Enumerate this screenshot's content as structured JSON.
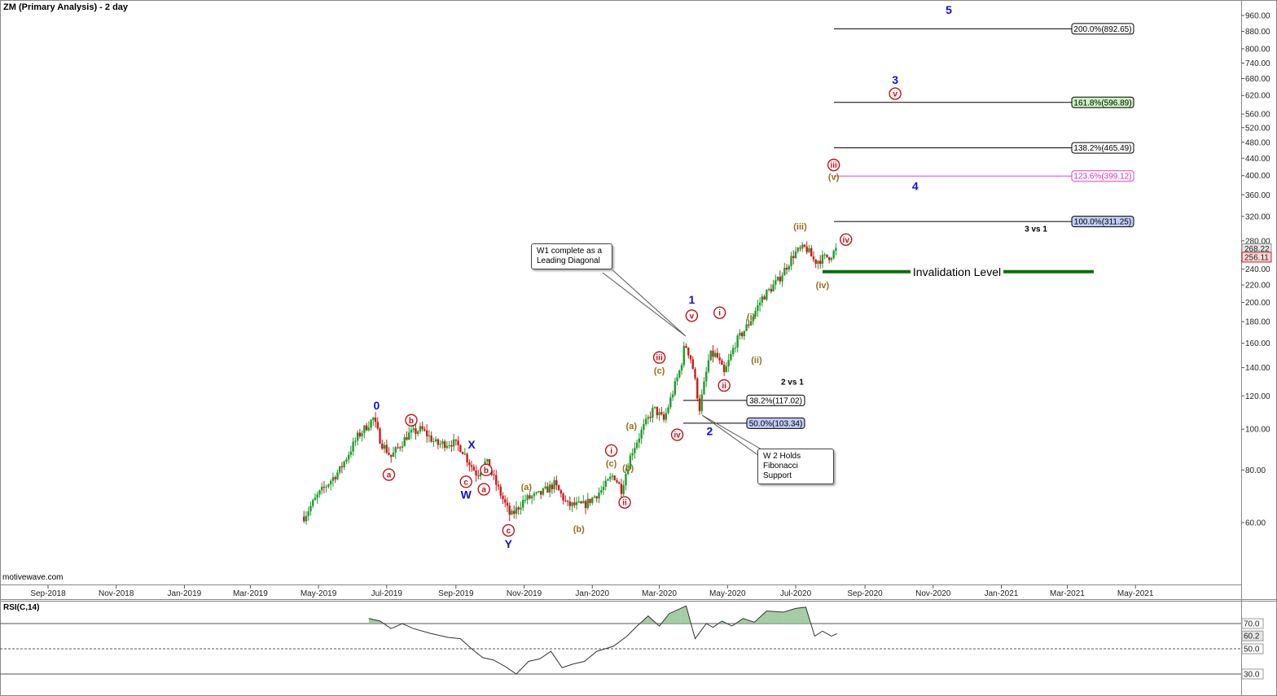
{
  "header": {
    "title": "ZM (Primary Analysis) - 2 day",
    "rsi_title": "RSI(C,14)",
    "watermark": "motivewave.com"
  },
  "colors": {
    "up_candle": "#1d9e2a",
    "down_candle": "#c91b1b",
    "wave_blue": "#1111cc",
    "wave_red": "#c0101a",
    "wave_brown": "#9a6d1c",
    "invalidation": "#0a6e0a",
    "fib_pink": "#e040c0",
    "rsi_fill": "#8fbf8f"
  },
  "chart_data": {
    "type": "candlestick",
    "scale": "log",
    "y_ticks": [
      "960.00",
      "880.00",
      "800.00",
      "740.00",
      "680.00",
      "620.00",
      "560.00",
      "520.00",
      "480.00",
      "440.00",
      "400.00",
      "360.00",
      "320.00",
      "280.00",
      "240.00",
      "220.00",
      "200.00",
      "180.00",
      "160.00",
      "140.00",
      "120.00",
      "100.00",
      "80.00",
      "60.00"
    ],
    "x_ticks": [
      "Sep-2018",
      "Nov-2018",
      "Jan-2019",
      "Mar-2019",
      "May-2019",
      "Jul-2019",
      "Sep-2019",
      "Nov-2019",
      "Jan-2020",
      "Mar-2020",
      "May-2020",
      "Jul-2020",
      "Sep-2020",
      "Nov-2020",
      "Jan-2021",
      "Mar-2021",
      "May-2021"
    ],
    "price_labels": [
      {
        "text": "268.22",
        "price": 268.22,
        "style": "grey"
      },
      {
        "text": "256.11",
        "price": 256.11,
        "style": "red"
      }
    ],
    "price_path": [
      [
        "2019-04-18",
        62
      ],
      [
        "2019-05-01",
        70
      ],
      [
        "2019-05-20",
        80
      ],
      [
        "2019-06-05",
        96
      ],
      [
        "2019-06-19",
        106
      ],
      [
        "2019-06-26",
        93
      ],
      [
        "2019-07-05",
        86
      ],
      [
        "2019-07-20",
        97
      ],
      [
        "2019-08-01",
        100
      ],
      [
        "2019-08-15",
        92
      ],
      [
        "2019-08-29",
        93
      ],
      [
        "2019-09-06",
        90
      ],
      [
        "2019-09-12",
        84
      ],
      [
        "2019-09-20",
        78
      ],
      [
        "2019-09-28",
        84
      ],
      [
        "2019-10-08",
        73
      ],
      [
        "2019-10-20",
        62
      ],
      [
        "2019-11-01",
        68
      ],
      [
        "2019-11-15",
        70
      ],
      [
        "2019-11-28",
        74
      ],
      [
        "2019-12-10",
        66
      ],
      [
        "2019-12-25",
        66
      ],
      [
        "2020-01-10",
        72
      ],
      [
        "2020-01-20",
        78
      ],
      [
        "2020-01-27",
        72
      ],
      [
        "2020-02-05",
        88
      ],
      [
        "2020-02-15",
        100
      ],
      [
        "2020-02-25",
        112
      ],
      [
        "2020-03-05",
        105
      ],
      [
        "2020-03-12",
        120
      ],
      [
        "2020-03-20",
        140
      ],
      [
        "2020-03-24",
        160
      ],
      [
        "2020-03-30",
        145
      ],
      [
        "2020-04-06",
        112
      ],
      [
        "2020-04-15",
        150
      ],
      [
        "2020-04-21",
        150
      ],
      [
        "2020-04-28",
        135
      ],
      [
        "2020-05-08",
        160
      ],
      [
        "2020-05-20",
        178
      ],
      [
        "2020-06-01",
        205
      ],
      [
        "2020-06-15",
        225
      ],
      [
        "2020-06-30",
        262
      ],
      [
        "2020-07-10",
        270
      ],
      [
        "2020-07-18",
        250
      ],
      [
        "2020-07-26",
        255
      ],
      [
        "2020-08-01",
        258
      ],
      [
        "2020-08-07",
        268
      ]
    ],
    "fib_targets": [
      {
        "text": "200.0%(892.65)",
        "price": 892.65,
        "fill": "#ffffff",
        "line": "#000000",
        "text_color": "#000000"
      },
      {
        "text": "161.8%(596.89)",
        "price": 596.89,
        "fill": "#c8f0c0",
        "line": "#000000",
        "text_color": "#000000"
      },
      {
        "text": "138.2%(465.49)",
        "price": 465.49,
        "fill": "#ffffff",
        "line": "#000000",
        "text_color": "#000000"
      },
      {
        "text": "123.6%(399.12)",
        "price": 399.12,
        "fill": "#ffffff",
        "line": "#e040c0",
        "text_color": "#d030b0"
      },
      {
        "text": "100.0%(311.25)",
        "price": 311.25,
        "fill": "#c0ccf4",
        "line": "#000000",
        "text_color": "#000000"
      }
    ],
    "fib_retrace": [
      {
        "text": "38.2%(117.02)",
        "price": 117.02,
        "fill": "#ffffff"
      },
      {
        "text": "50.0%(103.34)",
        "price": 103.34,
        "fill": "#c0ccf4"
      }
    ],
    "ratio_labels": [
      {
        "text": "3 vs 1",
        "date": "2021-02-01",
        "price": 300
      },
      {
        "text": "2 vs 1",
        "date": "2020-06-28",
        "price": 130
      }
    ],
    "invalidation": {
      "label": "Invalidation Level",
      "price": 236.5
    },
    "wave_labels": [
      {
        "text": "0",
        "date": "2019-06-22",
        "price": 114,
        "color": "blue",
        "circle": false
      },
      {
        "text": "a",
        "date": "2019-07-03",
        "price": 78,
        "color": "red",
        "circle": true
      },
      {
        "text": "b",
        "date": "2019-07-23",
        "price": 105,
        "color": "red",
        "circle": true
      },
      {
        "text": "X",
        "date": "2019-09-15",
        "price": 92,
        "color": "blue",
        "circle": false
      },
      {
        "text": "b",
        "date": "2019-09-28",
        "price": 80,
        "color": "red",
        "circle": true
      },
      {
        "text": "c",
        "date": "2019-09-10",
        "price": 75,
        "color": "red",
        "circle": true
      },
      {
        "text": "W",
        "date": "2019-09-10",
        "price": 70,
        "color": "blue",
        "circle": false
      },
      {
        "text": "a",
        "date": "2019-09-26",
        "price": 72,
        "color": "red",
        "circle": true
      },
      {
        "text": "c",
        "date": "2019-10-18",
        "price": 57.5,
        "color": "red",
        "circle": true
      },
      {
        "text": "Y",
        "date": "2019-10-18",
        "price": 53.5,
        "color": "blue",
        "circle": false
      },
      {
        "text": "(a)",
        "date": "2019-11-03",
        "price": 73,
        "color": "brown",
        "circle": false
      },
      {
        "text": "(b)",
        "date": "2019-12-20",
        "price": 58,
        "color": "brown",
        "circle": false
      },
      {
        "text": "i",
        "date": "2020-01-18",
        "price": 89,
        "color": "red",
        "circle": true
      },
      {
        "text": "(c)",
        "date": "2020-01-18",
        "price": 83,
        "color": "brown",
        "circle": false
      },
      {
        "text": "(b)",
        "date": "2020-02-02",
        "price": 81,
        "color": "brown",
        "circle": false
      },
      {
        "text": "ii",
        "date": "2020-01-30",
        "price": 67,
        "color": "red",
        "circle": true
      },
      {
        "text": "(a)",
        "date": "2020-02-05",
        "price": 102,
        "color": "brown",
        "circle": false
      },
      {
        "text": "iii",
        "date": "2020-03-01",
        "price": 148,
        "color": "red",
        "circle": true
      },
      {
        "text": "(c)",
        "date": "2020-03-01",
        "price": 138,
        "color": "brown",
        "circle": false
      },
      {
        "text": "iv",
        "date": "2020-03-17",
        "price": 97,
        "color": "red",
        "circle": true
      },
      {
        "text": "1",
        "date": "2020-03-30",
        "price": 203,
        "color": "blue",
        "circle": false
      },
      {
        "text": "v",
        "date": "2020-03-30",
        "price": 186,
        "color": "red",
        "circle": true
      },
      {
        "text": "2",
        "date": "2020-04-15",
        "price": 99,
        "color": "blue",
        "circle": false
      },
      {
        "text": "i",
        "date": "2020-04-24",
        "price": 189,
        "color": "red",
        "circle": true
      },
      {
        "text": "ii",
        "date": "2020-04-28",
        "price": 127,
        "color": "red",
        "circle": true
      },
      {
        "text": "(i)",
        "date": "2020-05-22",
        "price": 185,
        "color": "brown",
        "circle": false
      },
      {
        "text": "(ii)",
        "date": "2020-05-27",
        "price": 146,
        "color": "brown",
        "circle": false
      },
      {
        "text": "(iii)",
        "date": "2020-07-05",
        "price": 303,
        "color": "brown",
        "circle": false
      },
      {
        "text": "(iv)",
        "date": "2020-07-25",
        "price": 220,
        "color": "brown",
        "circle": false
      },
      {
        "text": "iv",
        "date": "2020-08-15",
        "price": 282,
        "color": "red",
        "circle": true
      },
      {
        "text": "iii",
        "date": "2020-08-04",
        "price": 424,
        "color": "red",
        "circle": true
      },
      {
        "text": "(v)",
        "date": "2020-08-04",
        "price": 398,
        "color": "brown",
        "circle": false
      },
      {
        "text": "4",
        "date": "2020-10-16",
        "price": 378,
        "color": "blue",
        "circle": false
      },
      {
        "text": "3",
        "date": "2020-09-28",
        "price": 675,
        "color": "blue",
        "circle": false
      },
      {
        "text": "v",
        "date": "2020-09-28",
        "price": 626,
        "color": "red",
        "circle": true
      },
      {
        "text": "5",
        "date": "2020-11-15",
        "price": 990,
        "color": "blue",
        "circle": false
      }
    ],
    "rsi": {
      "levels": [
        "70.0",
        "50.0",
        "30.0"
      ],
      "current": "60.2",
      "path": [
        [
          "2019-06-15",
          74
        ],
        [
          "2019-06-25",
          72
        ],
        [
          "2019-07-05",
          66
        ],
        [
          "2019-07-15",
          70
        ],
        [
          "2019-07-25",
          66
        ],
        [
          "2019-08-10",
          62
        ],
        [
          "2019-08-25",
          59
        ],
        [
          "2019-09-05",
          58
        ],
        [
          "2019-09-15",
          50
        ],
        [
          "2019-09-25",
          43
        ],
        [
          "2019-10-05",
          41
        ],
        [
          "2019-10-15",
          36
        ],
        [
          "2019-10-25",
          30
        ],
        [
          "2019-11-05",
          40
        ],
        [
          "2019-11-15",
          42
        ],
        [
          "2019-11-25",
          48
        ],
        [
          "2019-12-05",
          35
        ],
        [
          "2019-12-15",
          38
        ],
        [
          "2019-12-25",
          40
        ],
        [
          "2020-01-05",
          48
        ],
        [
          "2020-01-20",
          52
        ],
        [
          "2020-02-01",
          60
        ],
        [
          "2020-02-10",
          68
        ],
        [
          "2020-02-20",
          76
        ],
        [
          "2020-03-01",
          68
        ],
        [
          "2020-03-10",
          78
        ],
        [
          "2020-03-20",
          82
        ],
        [
          "2020-03-25",
          84
        ],
        [
          "2020-04-02",
          58
        ],
        [
          "2020-04-12",
          70
        ],
        [
          "2020-04-18",
          67
        ],
        [
          "2020-04-26",
          72
        ],
        [
          "2020-05-05",
          68
        ],
        [
          "2020-05-15",
          74
        ],
        [
          "2020-05-25",
          71
        ],
        [
          "2020-06-05",
          80
        ],
        [
          "2020-06-20",
          79
        ],
        [
          "2020-07-01",
          82
        ],
        [
          "2020-07-10",
          83
        ],
        [
          "2020-07-18",
          60
        ],
        [
          "2020-07-25",
          64
        ],
        [
          "2020-08-02",
          60
        ],
        [
          "2020-08-07",
          62
        ]
      ]
    }
  },
  "callouts": {
    "w1": "W1 complete as a Leading Diagonal",
    "w2": "W 2 Holds Fibonacci Support"
  }
}
